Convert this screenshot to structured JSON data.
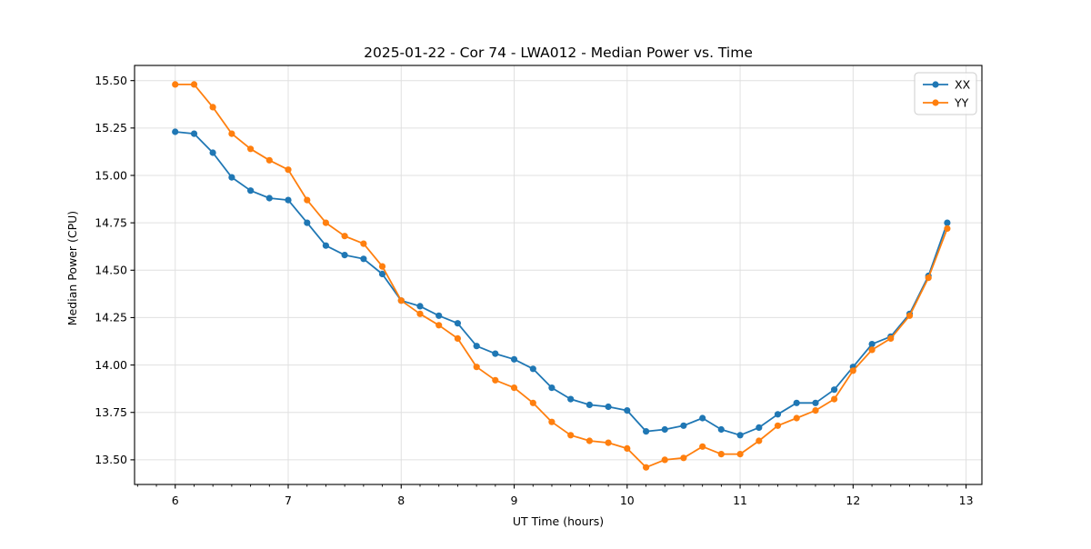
{
  "chart": {
    "title": "2025-01-22 - Cor 74 - LWA012 - Median Power vs. Time",
    "xlabel": "UT Time (hours)",
    "ylabel": "Median Power (CPU)",
    "legend": [
      "XX",
      "YY"
    ],
    "colors": {
      "xx": "#1f77b4",
      "yy": "#ff7f0e",
      "grid": "#e0e0e0",
      "spine": "#000000",
      "legend_edge": "#cccccc"
    }
  },
  "chart_data": {
    "type": "line",
    "title": "2025-01-22 - Cor 74 - LWA012 - Median Power vs. Time",
    "xlabel": "UT Time (hours)",
    "ylabel": "Median Power (CPU)",
    "grid": true,
    "legend_position": "upper right",
    "xlim": [
      5.64,
      13.14
    ],
    "ylim": [
      13.37,
      15.58
    ],
    "xticks": [
      6,
      7,
      8,
      9,
      10,
      11,
      12,
      13
    ],
    "yticks": [
      13.5,
      13.75,
      14.0,
      14.25,
      14.5,
      14.75,
      15.0,
      15.25,
      15.5
    ],
    "x_minor_step": 0.16667,
    "x": [
      6.0,
      6.167,
      6.333,
      6.5,
      6.667,
      6.833,
      7.0,
      7.167,
      7.333,
      7.5,
      7.667,
      7.833,
      8.0,
      8.167,
      8.333,
      8.5,
      8.667,
      8.833,
      9.0,
      9.167,
      9.333,
      9.5,
      9.667,
      9.833,
      10.0,
      10.167,
      10.333,
      10.5,
      10.667,
      10.833,
      11.0,
      11.167,
      11.333,
      11.5,
      11.667,
      11.833,
      12.0,
      12.167,
      12.333,
      12.5,
      12.667,
      12.833
    ],
    "series": [
      {
        "name": "XX",
        "color": "#1f77b4",
        "values": [
          15.23,
          15.22,
          15.12,
          14.99,
          14.92,
          14.88,
          14.87,
          14.75,
          14.63,
          14.58,
          14.56,
          14.48,
          14.34,
          14.31,
          14.26,
          14.22,
          14.1,
          14.06,
          14.03,
          13.98,
          13.88,
          13.82,
          13.79,
          13.78,
          13.76,
          13.65,
          13.66,
          13.68,
          13.72,
          13.66,
          13.63,
          13.67,
          13.74,
          13.8,
          13.8,
          13.87,
          13.99,
          14.11,
          14.15,
          14.27,
          14.47,
          14.75
        ]
      },
      {
        "name": "YY",
        "color": "#ff7f0e",
        "values": [
          15.48,
          15.48,
          15.36,
          15.22,
          15.14,
          15.08,
          15.03,
          14.87,
          14.75,
          14.68,
          14.64,
          14.52,
          14.34,
          14.27,
          14.21,
          14.14,
          13.99,
          13.92,
          13.88,
          13.8,
          13.7,
          13.63,
          13.6,
          13.59,
          13.56,
          13.46,
          13.5,
          13.51,
          13.57,
          13.53,
          13.53,
          13.6,
          13.68,
          13.72,
          13.76,
          13.82,
          13.97,
          14.08,
          14.14,
          14.26,
          14.46,
          14.72
        ]
      }
    ]
  }
}
